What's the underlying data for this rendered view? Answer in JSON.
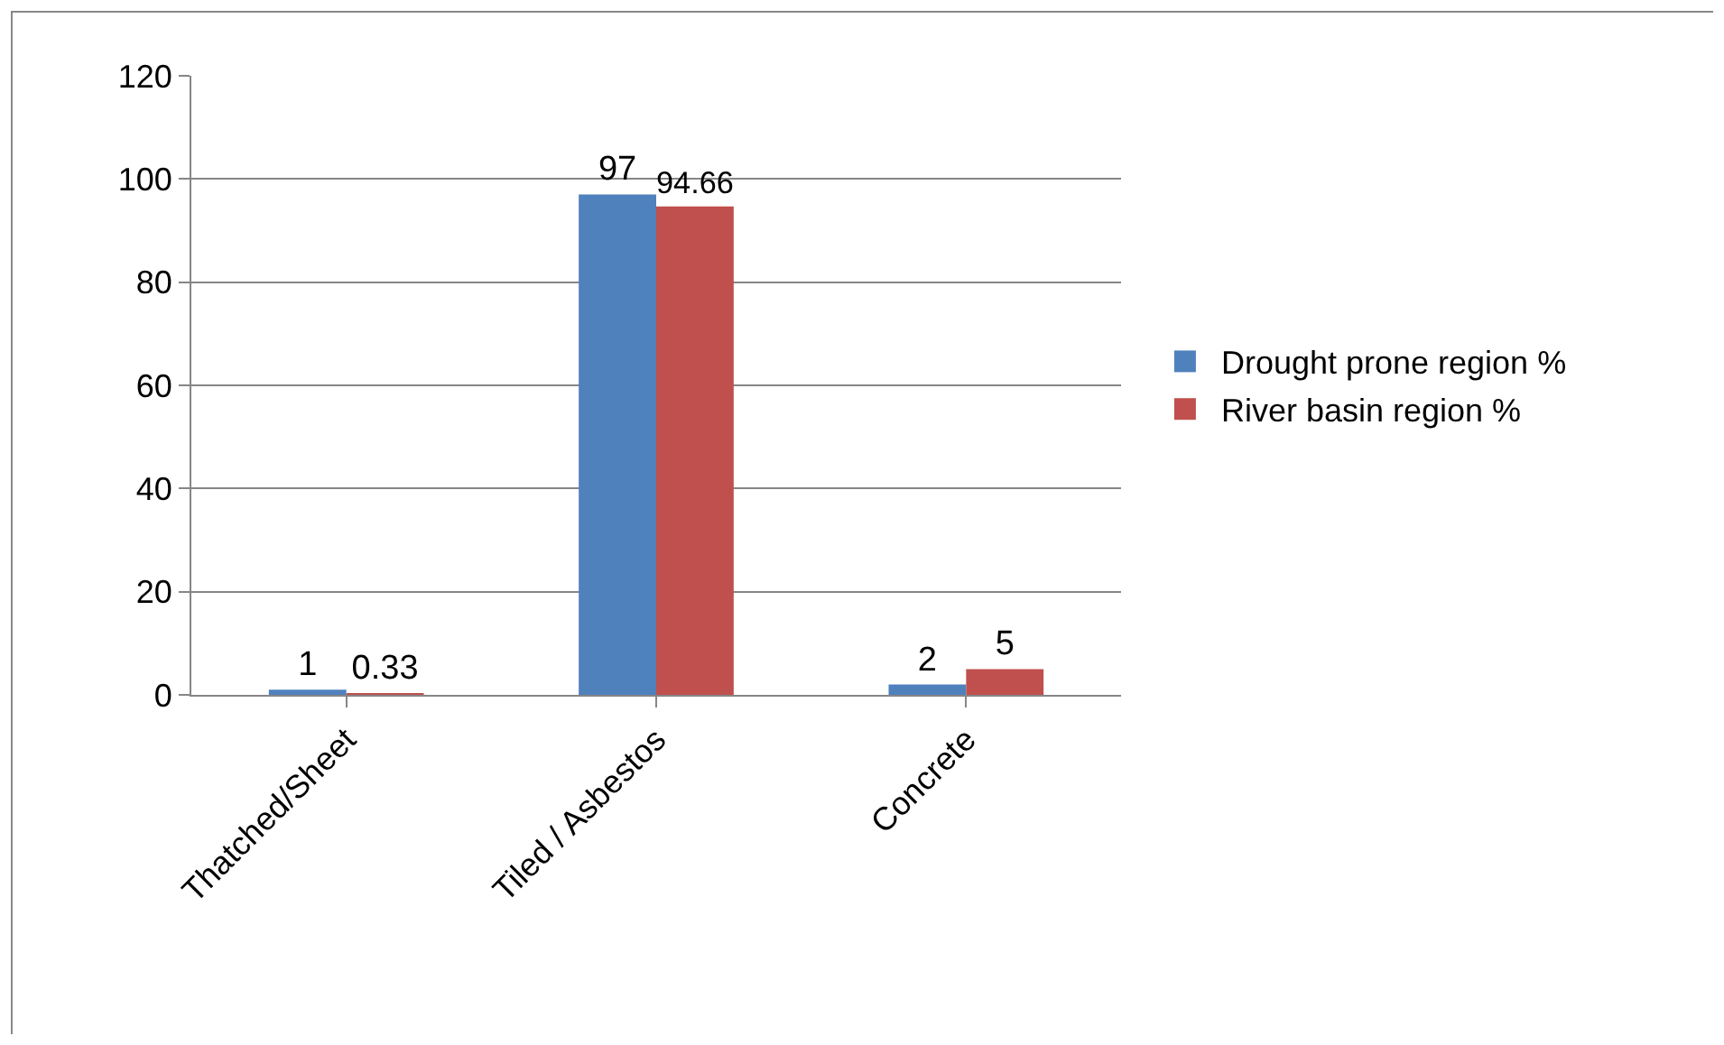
{
  "chart_data": {
    "type": "bar",
    "categories": [
      "Thatched/Sheet",
      "Tiled / Asbestos",
      "Concrete"
    ],
    "series": [
      {
        "name": "Drought prone region %",
        "color": "#4f81bd",
        "values": [
          1,
          97,
          2
        ]
      },
      {
        "name": "River basin region %",
        "color": "#c0504d",
        "values": [
          0.33,
          94.66,
          5
        ]
      }
    ],
    "ylim": [
      0,
      120
    ],
    "yticks": [
      0,
      20,
      40,
      60,
      80,
      100,
      120
    ],
    "grid": "y",
    "legend": "right",
    "data_labels": true
  }
}
